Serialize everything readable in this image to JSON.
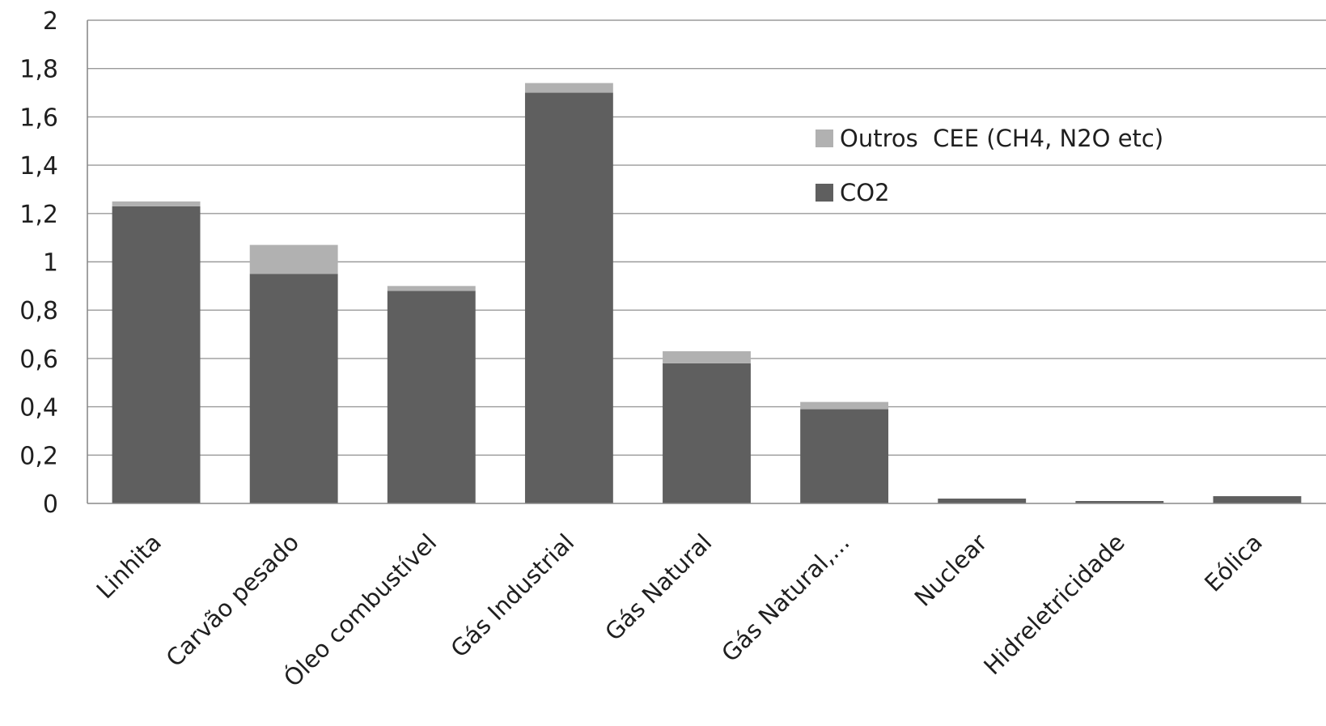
{
  "chart_data": {
    "type": "bar",
    "stacked": true,
    "title": "",
    "xlabel": "",
    "ylabel": "",
    "ylim": [
      0,
      2
    ],
    "yticks": [
      "0",
      "0,2",
      "0,4",
      "0,6",
      "0,8",
      "1",
      "1,2",
      "1,4",
      "1,6",
      "1,8",
      "2"
    ],
    "grid": true,
    "legend_position": "right",
    "categories": [
      "Linhita",
      "Carvão pesado",
      "Óleo combustível",
      "Gás Industrial",
      "Gás Natural",
      "Gás Natural,...",
      "Nuclear",
      "Hidreletricidade",
      "Eólica"
    ],
    "series": [
      {
        "name": "CO2",
        "color": "#5f5f5f",
        "values": [
          1.23,
          0.95,
          0.88,
          1.7,
          0.58,
          0.39,
          0.02,
          0.01,
          0.03
        ]
      },
      {
        "name": "Outros  CEE (CH4, N2O etc)",
        "color": "#b1b1b1",
        "values": [
          0.02,
          0.12,
          0.02,
          0.04,
          0.05,
          0.03,
          0.0,
          0.0,
          0.0
        ]
      }
    ],
    "legend_order": [
      "Outros  CEE (CH4, N2O etc)",
      "CO2"
    ]
  }
}
